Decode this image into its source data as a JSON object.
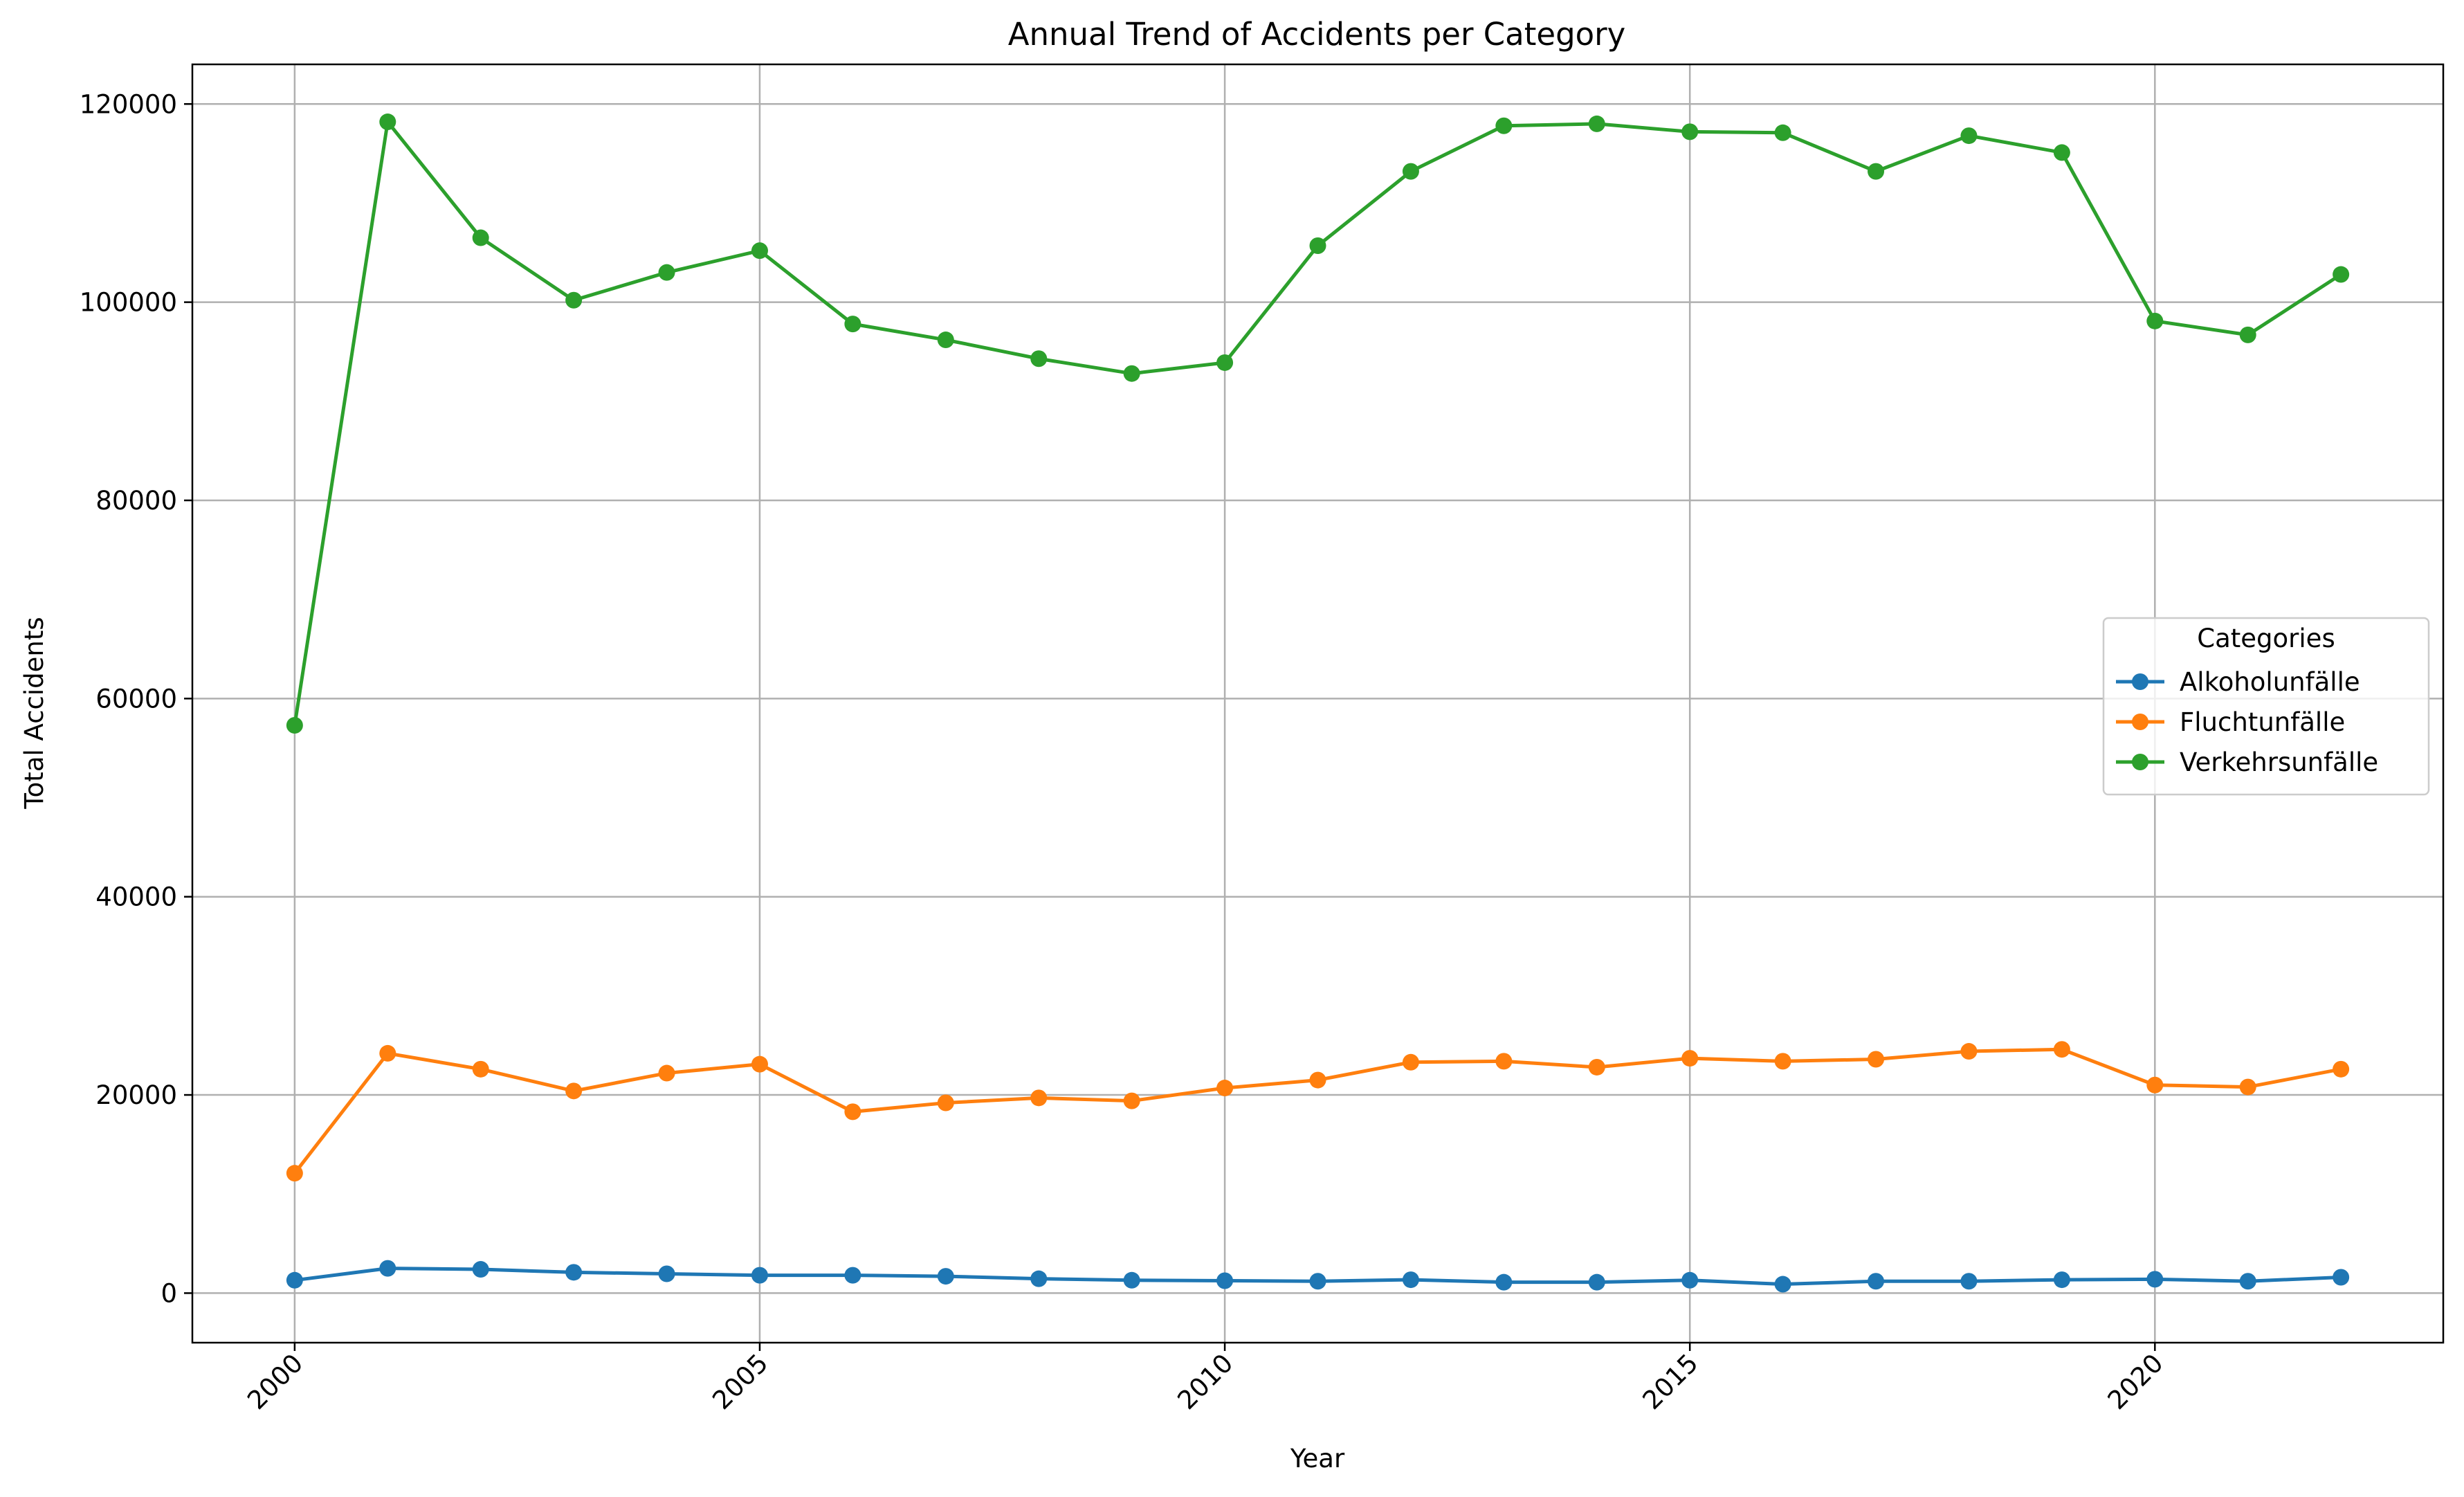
{
  "chart_data": {
    "type": "line",
    "title": "Annual Trend of Accidents per Category",
    "xlabel": "Year",
    "ylabel": "Total Accidents",
    "x": [
      2000,
      2001,
      2002,
      2003,
      2004,
      2005,
      2006,
      2007,
      2008,
      2009,
      2010,
      2011,
      2012,
      2013,
      2014,
      2015,
      2016,
      2017,
      2018,
      2019,
      2020,
      2021,
      2022
    ],
    "xticks": [
      "2000",
      "2005",
      "2010",
      "2015",
      "2020"
    ],
    "yticks": [
      "0",
      "20000",
      "40000",
      "60000",
      "80000",
      "100000",
      "120000"
    ],
    "xlim": [
      1998.9,
      2023.1
    ],
    "ylim": [
      -5000,
      124000
    ],
    "grid": true,
    "legend": {
      "title": "Categories",
      "position": "right"
    },
    "series": [
      {
        "name": "Alkoholunfälle",
        "color": "#1f77b4",
        "values": [
          1300,
          2500,
          2400,
          2100,
          1950,
          1800,
          1800,
          1700,
          1450,
          1300,
          1250,
          1200,
          1350,
          1100,
          1100,
          1300,
          900,
          1200,
          1200,
          1350,
          1400,
          1200,
          1600
        ]
      },
      {
        "name": "Fluchtunfälle",
        "color": "#ff7f0e",
        "values": [
          12100,
          24200,
          22600,
          20400,
          22200,
          23100,
          18300,
          19200,
          19700,
          19400,
          20700,
          21500,
          23300,
          23400,
          22800,
          23700,
          23400,
          23600,
          24400,
          24600,
          21000,
          20800,
          22600
        ]
      },
      {
        "name": "Verkehrsunfälle",
        "color": "#2ca02c",
        "values": [
          57300,
          118200,
          106500,
          100200,
          103000,
          105200,
          97800,
          96200,
          94300,
          92800,
          93900,
          105700,
          113200,
          117800,
          118000,
          117200,
          117100,
          113200,
          116800,
          115100,
          98100,
          96700,
          102800
        ]
      }
    ]
  }
}
